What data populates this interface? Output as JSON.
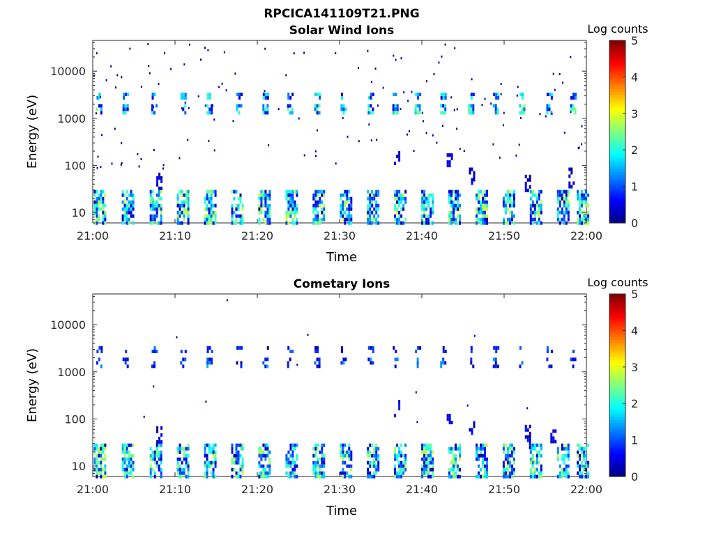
{
  "figure": {
    "filename": "RPCICA141109T21.PNG",
    "xlabel": "Time",
    "ylabel": "Energy (eV)",
    "colorbar_label": "Log counts",
    "colorbar_ticks": [
      "0",
      "1",
      "2",
      "3",
      "4",
      "5"
    ]
  },
  "chart_data": [
    {
      "type": "heatmap",
      "title": "Solar Wind Ions",
      "xlabel": "Time",
      "ylabel": "Energy (eV)",
      "x_ticks": [
        "21:00",
        "21:10",
        "21:20",
        "21:30",
        "21:40",
        "21:50",
        "22:00"
      ],
      "xlim_minutes": [
        0,
        60
      ],
      "y_scale": "log",
      "y_ticks": [
        10,
        100,
        1000,
        10000
      ],
      "y_tick_labels": [
        "10",
        "100",
        "1000",
        "10000"
      ],
      "ylim": [
        6,
        45000
      ],
      "colorbar": {
        "label": "Log counts",
        "range": [
          0,
          5
        ],
        "colormap": "jet"
      },
      "description_bands": {
        "low_energy_eV": [
          6,
          30
        ],
        "proton_peak_eV": [
          1400,
          2000
        ],
        "alpha_peak_eV": [
          2500,
          3500
        ]
      },
      "sweep_minutes": [
        0.8,
        4.2,
        7.6,
        10.9,
        14.2,
        17.5,
        20.8,
        24.1,
        27.4,
        30.7,
        34.0,
        37.3,
        40.6,
        43.9,
        47.2,
        50.5,
        53.8,
        57.1,
        59.5
      ],
      "proton_sweeps": [
        0.8,
        4.0,
        7.5,
        11.0,
        14.2,
        17.8,
        21.0,
        24.0,
        27.3,
        30.5,
        33.8,
        36.8,
        39.5,
        42.6,
        46.0,
        49.0,
        52.2,
        55.5,
        58.4
      ],
      "mid_energy_events": [
        {
          "minute": 8.1,
          "energy_range_eV": [
            35,
            70
          ]
        },
        {
          "minute": 37.0,
          "energy_range_eV": [
            110,
            200
          ]
        },
        {
          "minute": 43.4,
          "energy_range_eV": [
            100,
            180
          ]
        },
        {
          "minute": 46.1,
          "energy_range_eV": [
            40,
            90
          ]
        },
        {
          "minute": 52.9,
          "energy_range_eV": [
            25,
            75
          ]
        },
        {
          "minute": 58.2,
          "energy_range_eV": [
            35,
            90
          ]
        }
      ]
    },
    {
      "type": "heatmap",
      "title": "Cometary Ions",
      "xlabel": "Time",
      "ylabel": "Energy (eV)",
      "x_ticks": [
        "21:00",
        "21:10",
        "21:20",
        "21:30",
        "21:40",
        "21:50",
        "22:00"
      ],
      "xlim_minutes": [
        0,
        60
      ],
      "y_scale": "log",
      "y_ticks": [
        10,
        100,
        1000,
        10000
      ],
      "y_tick_labels": [
        "10",
        "100",
        "1000",
        "10000"
      ],
      "ylim": [
        6,
        45000
      ],
      "colorbar": {
        "label": "Log counts",
        "range": [
          0,
          5
        ],
        "colormap": "jet"
      },
      "description_bands": {
        "low_energy_eV": [
          6,
          30
        ],
        "proton_peak_eV": [
          1400,
          2000
        ],
        "alpha_peak_eV": [
          2500,
          3500
        ]
      },
      "sweep_minutes": [
        0.8,
        4.2,
        7.6,
        10.9,
        14.2,
        17.5,
        20.8,
        24.1,
        27.4,
        30.7,
        34.0,
        37.3,
        40.6,
        43.9,
        47.2,
        50.5,
        53.8,
        57.1,
        59.5
      ],
      "proton_sweeps": [
        0.8,
        4.0,
        7.5,
        11.0,
        14.2,
        17.8,
        21.0,
        24.0,
        27.3,
        30.5,
        33.8,
        36.8,
        39.5,
        42.6,
        46.0,
        49.0,
        52.2,
        55.5,
        58.4
      ],
      "mid_energy_events": [
        {
          "minute": 8.1,
          "energy_range_eV": [
            35,
            70
          ]
        },
        {
          "minute": 37.0,
          "energy_range_eV": [
            80,
            300
          ]
        },
        {
          "minute": 43.4,
          "energy_range_eV": [
            90,
            180
          ]
        },
        {
          "minute": 46.1,
          "energy_range_eV": [
            40,
            90
          ]
        },
        {
          "minute": 52.9,
          "energy_range_eV": [
            25,
            75
          ]
        },
        {
          "minute": 56.0,
          "energy_range_eV": [
            30,
            60
          ]
        }
      ]
    }
  ]
}
